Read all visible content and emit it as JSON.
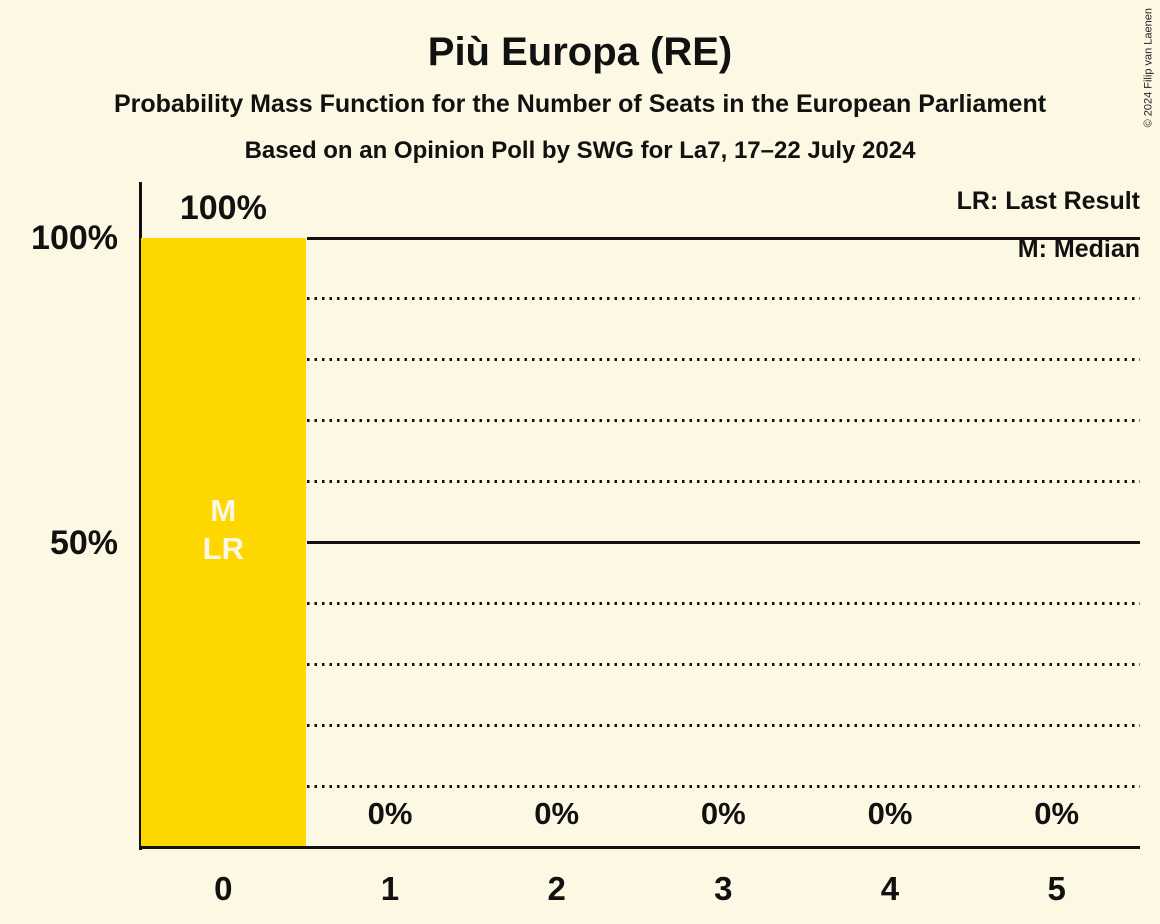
{
  "title": "Più Europa (RE)",
  "subtitles": [
    "Probability Mass Function for the Number of Seats in the European Parliament",
    "Based on an Opinion Poll by SWG for La7, 17–22 July 2024"
  ],
  "copyright": "© 2024 Filip van Laenen",
  "legend": {
    "last_result": "LR: Last Result",
    "median": "M: Median"
  },
  "y_axis": {
    "labels": [
      "100%",
      "50%"
    ]
  },
  "colors": {
    "background": "#FDF8E3",
    "bar": "#FFD700",
    "line": "#111111",
    "text": "#111111",
    "bar_annotation_text": "#FDF8E3"
  },
  "chart_data": {
    "type": "bar",
    "title": "Più Europa (RE)",
    "categories": [
      "0",
      "1",
      "2",
      "3",
      "4",
      "5"
    ],
    "values": [
      100,
      0,
      0,
      0,
      0,
      0
    ],
    "value_labels": [
      "100%",
      "0%",
      "0%",
      "0%",
      "0%",
      "0%"
    ],
    "ylim": [
      0,
      100
    ],
    "y_solid_gridlines": [
      100,
      50
    ],
    "y_dotted_gridlines": [
      90,
      80,
      70,
      60,
      40,
      30,
      20,
      10
    ],
    "annotations": [
      {
        "category_index": 0,
        "lines": [
          "M",
          "LR"
        ]
      }
    ],
    "legend_position": "top-right",
    "grid": "dotted-horizontal"
  }
}
